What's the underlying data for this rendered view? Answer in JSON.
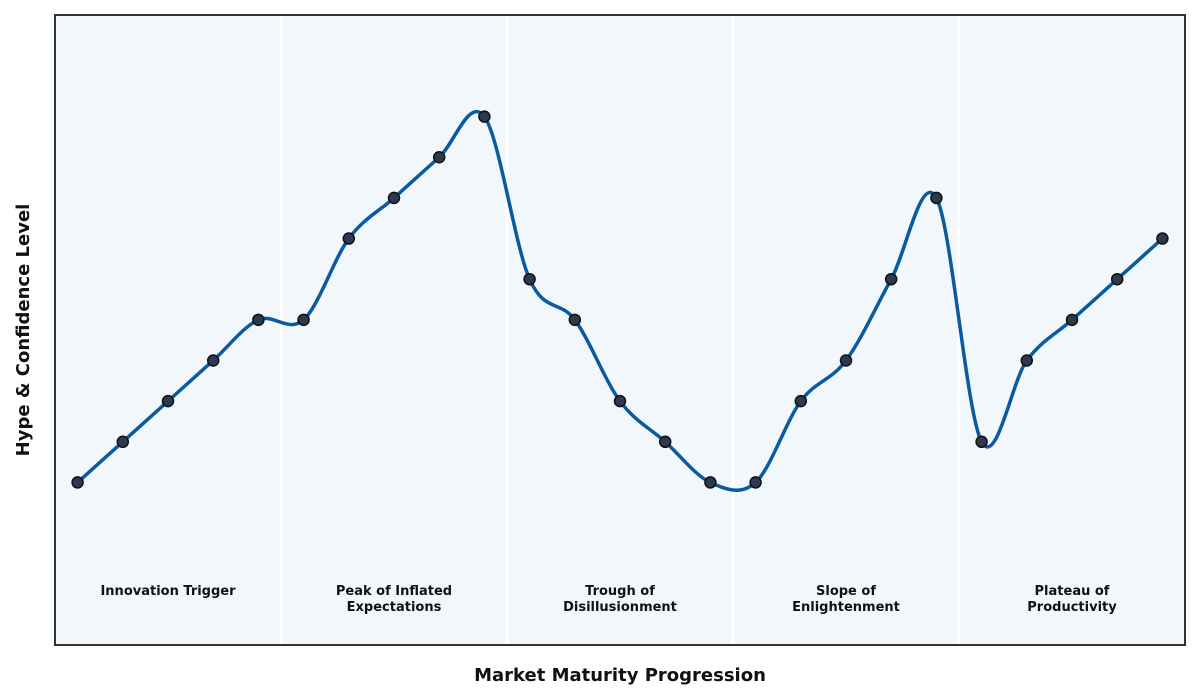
{
  "chart_data": {
    "type": "line",
    "xlabel": "Market Maturity Progression",
    "ylabel": "Hype & Confidence Level",
    "phases": [
      {
        "lines": [
          "Innovation Trigger"
        ]
      },
      {
        "lines": [
          "Peak of Inflated",
          "Expectations"
        ]
      },
      {
        "lines": [
          "Trough of",
          "Disillusionment"
        ]
      },
      {
        "lines": [
          "Slope of",
          "Enlightenment"
        ]
      },
      {
        "lines": [
          "Plateau of",
          "Productivity"
        ]
      }
    ],
    "x": [
      1,
      2,
      3,
      4,
      5,
      6,
      7,
      8,
      9,
      10,
      11,
      12,
      13,
      14,
      15,
      16,
      17,
      18,
      19,
      20,
      21,
      22,
      23,
      24,
      25
    ],
    "values": [
      2,
      3,
      4,
      5,
      6,
      6,
      8,
      9,
      10,
      11,
      7,
      6,
      4,
      3,
      2,
      2,
      4,
      5,
      7,
      9,
      3,
      5,
      6,
      7,
      8
    ],
    "xlim": [
      0.5,
      25.5
    ],
    "ylim": [
      -2,
      13.5
    ],
    "grid": false,
    "colors": {
      "plot_background": "#f2f7fc",
      "line": "#0b5aa0",
      "marker_fill": "#2b3a4e",
      "marker_edge": "#111111",
      "frame": "#333333",
      "phase_divider": "#ffffff"
    }
  }
}
